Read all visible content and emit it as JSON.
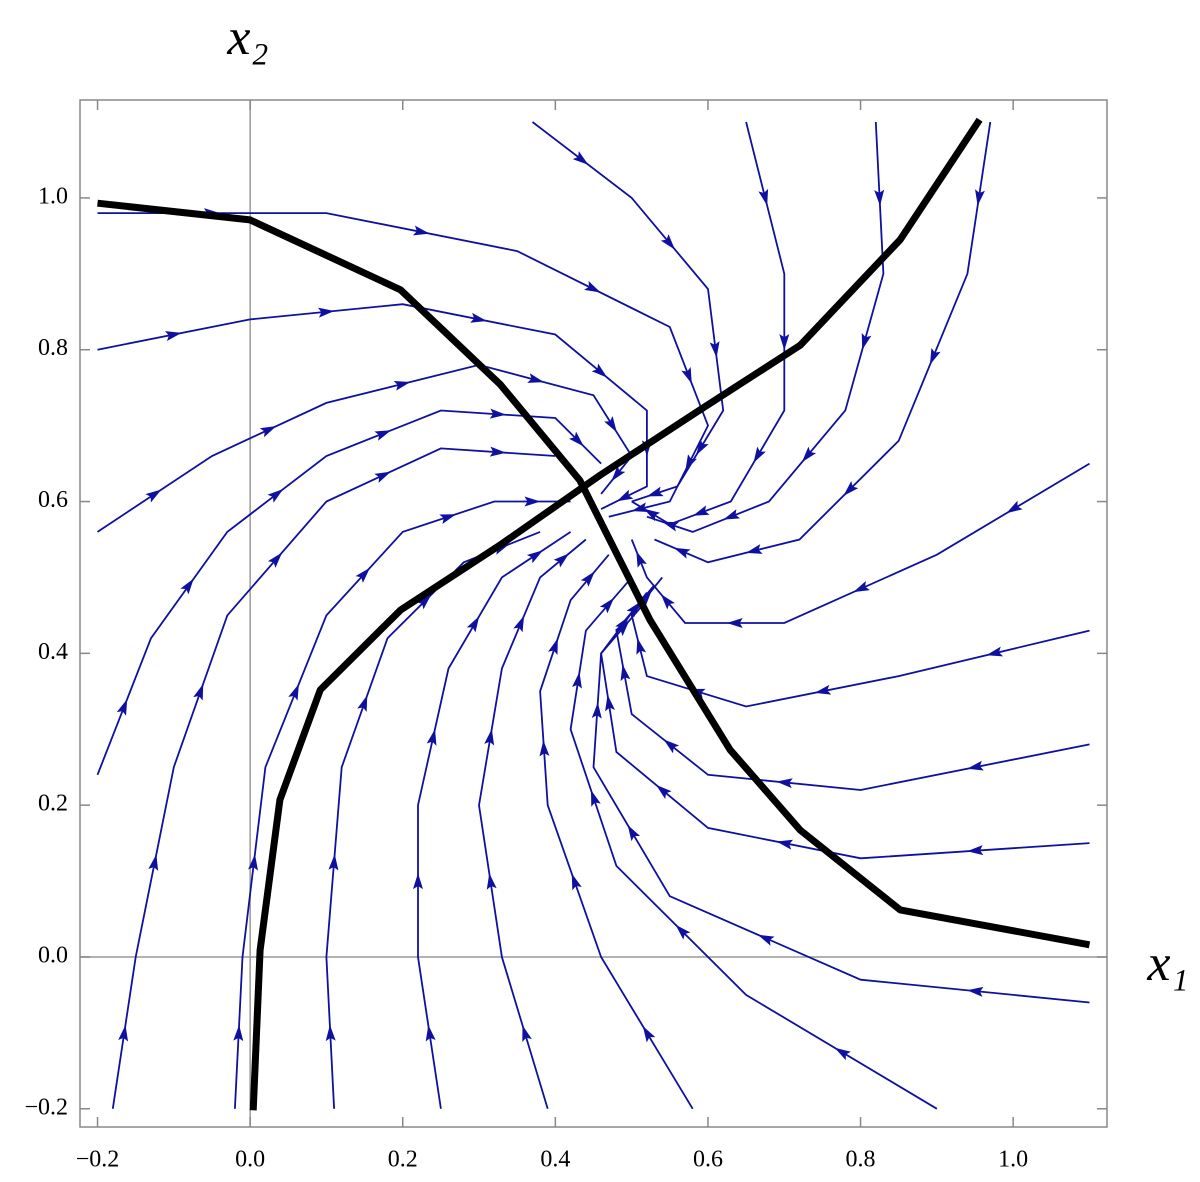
{
  "chart_data": {
    "type": "stream",
    "x_label": "x₁",
    "y_label": "x₂",
    "xlim": [
      -0.223,
      1.123
    ],
    "ylim": [
      -0.224,
      1.129
    ],
    "xticks": [
      {
        "value": -0.2,
        "label": "−0.2"
      },
      {
        "value": 0,
        "label": "0.0"
      },
      {
        "value": 0.2,
        "label": "0.2"
      },
      {
        "value": 0.4,
        "label": "0.4"
      },
      {
        "value": 0.6,
        "label": "0.6"
      },
      {
        "value": 0.8,
        "label": "0.8"
      },
      {
        "value": 1,
        "label": "1.0"
      }
    ],
    "yticks": [
      {
        "value": -0.2,
        "label": "−0.2"
      },
      {
        "value": 0,
        "label": "0.0"
      },
      {
        "value": 0.2,
        "label": "0.2"
      },
      {
        "value": 0.4,
        "label": "0.4"
      },
      {
        "value": 0.6,
        "label": "0.6"
      },
      {
        "value": 0.8,
        "label": "0.8"
      },
      {
        "value": 1,
        "label": "1.0"
      }
    ],
    "stream_color": "#1010a0",
    "nullcline_color": "#000000",
    "nullclines": [
      {
        "x": [
          -0.2,
          0,
          0.197,
          0.328,
          0.432,
          0.524,
          0.629,
          0.721,
          0.852,
          1.1
        ],
        "y": [
          0.993,
          0.971,
          0.879,
          0.754,
          0.628,
          0.444,
          0.273,
          0.167,
          0.062,
          0.016
        ]
      },
      {
        "x": [
          0.004,
          0.013,
          0.039,
          0.092,
          0.197,
          0.328,
          0.459,
          0.59,
          0.721,
          0.852,
          0.956
        ],
        "y": [
          -0.202,
          0.009,
          0.207,
          0.352,
          0.457,
          0.543,
          0.635,
          0.721,
          0.806,
          0.945,
          1.103
        ]
      }
    ],
    "streamlines": [
      {
        "x": [
          -0.2,
          0.1,
          0.35,
          0.55,
          0.6,
          0.55,
          0.47
        ],
        "y": [
          0.98,
          0.98,
          0.93,
          0.83,
          0.7,
          0.6,
          0.58
        ]
      },
      {
        "x": [
          -0.2,
          0.0,
          0.2,
          0.4,
          0.52,
          0.52,
          0.46
        ],
        "y": [
          0.8,
          0.84,
          0.86,
          0.82,
          0.72,
          0.62,
          0.59
        ]
      },
      {
        "x": [
          -0.2,
          -0.05,
          0.1,
          0.3,
          0.45,
          0.5,
          0.46
        ],
        "y": [
          0.56,
          0.66,
          0.73,
          0.78,
          0.74,
          0.66,
          0.61
        ]
      },
      {
        "x": [
          -0.2,
          -0.13,
          -0.03,
          0.1,
          0.25,
          0.4,
          0.46
        ],
        "y": [
          0.24,
          0.42,
          0.56,
          0.66,
          0.72,
          0.71,
          0.65
        ]
      },
      {
        "x": [
          -0.18,
          -0.15,
          -0.1,
          -0.03,
          0.1,
          0.25,
          0.4
        ],
        "y": [
          -0.2,
          0.0,
          0.25,
          0.45,
          0.6,
          0.67,
          0.66
        ]
      },
      {
        "x": [
          -0.02,
          -0.01,
          0.02,
          0.1,
          0.2,
          0.32,
          0.42
        ],
        "y": [
          -0.2,
          0.0,
          0.25,
          0.45,
          0.56,
          0.6,
          0.6
        ]
      },
      {
        "x": [
          0.11,
          0.1,
          0.12,
          0.18,
          0.28,
          0.38
        ],
        "y": [
          -0.2,
          0.0,
          0.25,
          0.42,
          0.52,
          0.56
        ]
      },
      {
        "x": [
          0.25,
          0.22,
          0.22,
          0.26,
          0.33,
          0.42
        ],
        "y": [
          -0.2,
          0.0,
          0.2,
          0.38,
          0.5,
          0.56
        ]
      },
      {
        "x": [
          0.39,
          0.33,
          0.3,
          0.33,
          0.38,
          0.44
        ],
        "y": [
          -0.2,
          0.0,
          0.2,
          0.38,
          0.5,
          0.55
        ]
      },
      {
        "x": [
          0.58,
          0.46,
          0.39,
          0.38,
          0.42,
          0.47
        ],
        "y": [
          -0.2,
          0.0,
          0.2,
          0.35,
          0.47,
          0.53
        ]
      },
      {
        "x": [
          0.9,
          0.65,
          0.48,
          0.42,
          0.44,
          0.5
        ],
        "y": [
          -0.2,
          -0.05,
          0.12,
          0.3,
          0.43,
          0.5
        ]
      },
      {
        "x": [
          1.1,
          0.8,
          0.55,
          0.45,
          0.46,
          0.52
        ],
        "y": [
          -0.06,
          -0.03,
          0.08,
          0.25,
          0.4,
          0.48
        ]
      },
      {
        "x": [
          1.1,
          0.8,
          0.6,
          0.48,
          0.46,
          0.52
        ],
        "y": [
          0.15,
          0.13,
          0.17,
          0.27,
          0.4,
          0.47
        ]
      },
      {
        "x": [
          1.1,
          0.8,
          0.6,
          0.5,
          0.48,
          0.53
        ],
        "y": [
          0.28,
          0.22,
          0.24,
          0.32,
          0.43,
          0.49
        ]
      },
      {
        "x": [
          1.1,
          0.85,
          0.65,
          0.52,
          0.5,
          0.54
        ],
        "y": [
          0.43,
          0.37,
          0.33,
          0.37,
          0.45,
          0.5
        ]
      },
      {
        "x": [
          1.1,
          0.9,
          0.7,
          0.57,
          0.52,
          0.5
        ],
        "y": [
          0.65,
          0.53,
          0.44,
          0.44,
          0.5,
          0.55
        ]
      },
      {
        "x": [
          0.97,
          0.94,
          0.85,
          0.72,
          0.6,
          0.53
        ],
        "y": [
          1.1,
          0.9,
          0.68,
          0.55,
          0.52,
          0.55
        ]
      },
      {
        "x": [
          0.82,
          0.83,
          0.78,
          0.68,
          0.58,
          0.52
        ],
        "y": [
          1.1,
          0.9,
          0.72,
          0.6,
          0.56,
          0.58
        ]
      },
      {
        "x": [
          0.65,
          0.7,
          0.7,
          0.63,
          0.55,
          0.5
        ],
        "y": [
          1.1,
          0.9,
          0.72,
          0.6,
          0.57,
          0.6
        ]
      },
      {
        "x": [
          0.37,
          0.5,
          0.6,
          0.62,
          0.56,
          0.5
        ],
        "y": [
          1.1,
          1.0,
          0.88,
          0.72,
          0.62,
          0.6
        ]
      }
    ]
  }
}
